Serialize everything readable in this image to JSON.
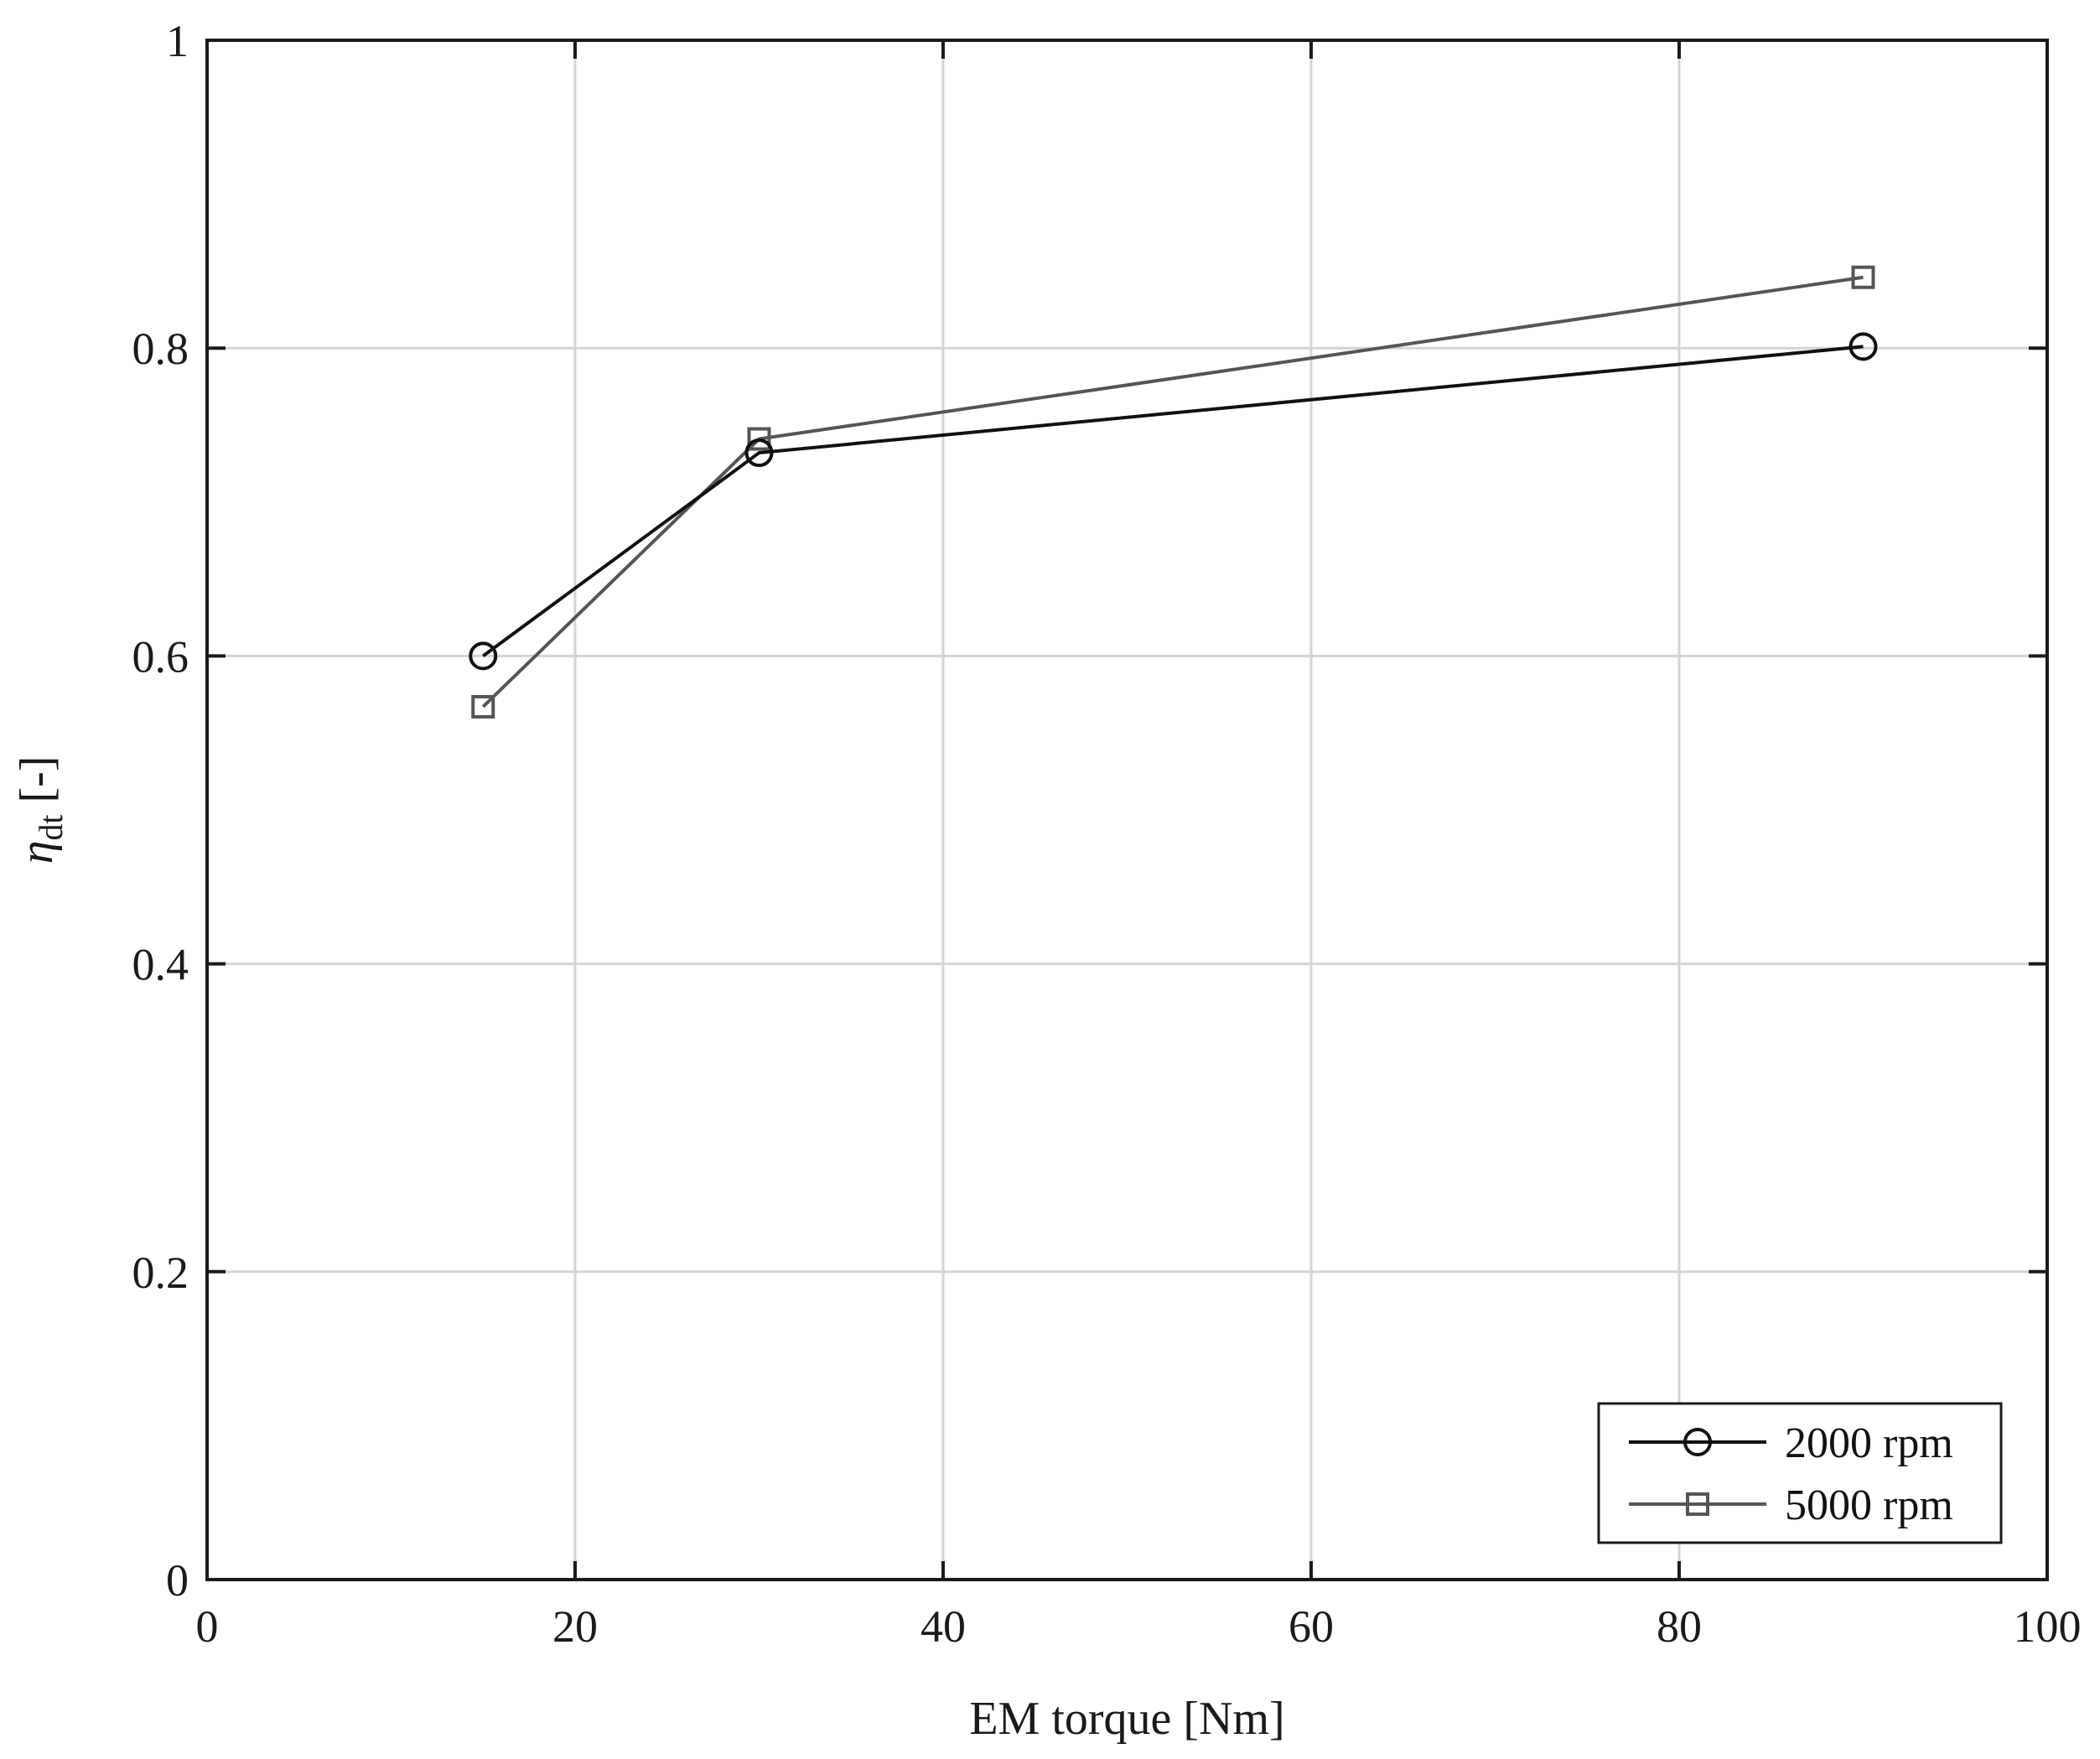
{
  "chart_data": {
    "type": "line",
    "xlabel": "EM torque [Nm]",
    "ylabel": {
      "main": "η",
      "subscript": "dt",
      "suffix": " [-]"
    },
    "xlim": [
      0,
      100
    ],
    "ylim": [
      0,
      1
    ],
    "xticks": [
      0,
      20,
      40,
      60,
      80,
      100
    ],
    "yticks": [
      0,
      0.2,
      0.4,
      0.6,
      0.8,
      1
    ],
    "xtick_labels": [
      "0",
      "20",
      "40",
      "60",
      "80",
      "100"
    ],
    "ytick_labels": [
      "0",
      "0.2",
      "0.4",
      "0.6",
      "0.8",
      "1"
    ],
    "grid": true,
    "legend_position": "bottom-right",
    "series": [
      {
        "name": "2000 rpm",
        "marker": "circle",
        "color": "#111111",
        "x": [
          15,
          30,
          90
        ],
        "y": [
          0.6,
          0.732,
          0.801
        ]
      },
      {
        "name": "5000 rpm",
        "marker": "square",
        "color": "#555555",
        "x": [
          15,
          30,
          90
        ],
        "y": [
          0.567,
          0.741,
          0.846
        ]
      }
    ]
  }
}
